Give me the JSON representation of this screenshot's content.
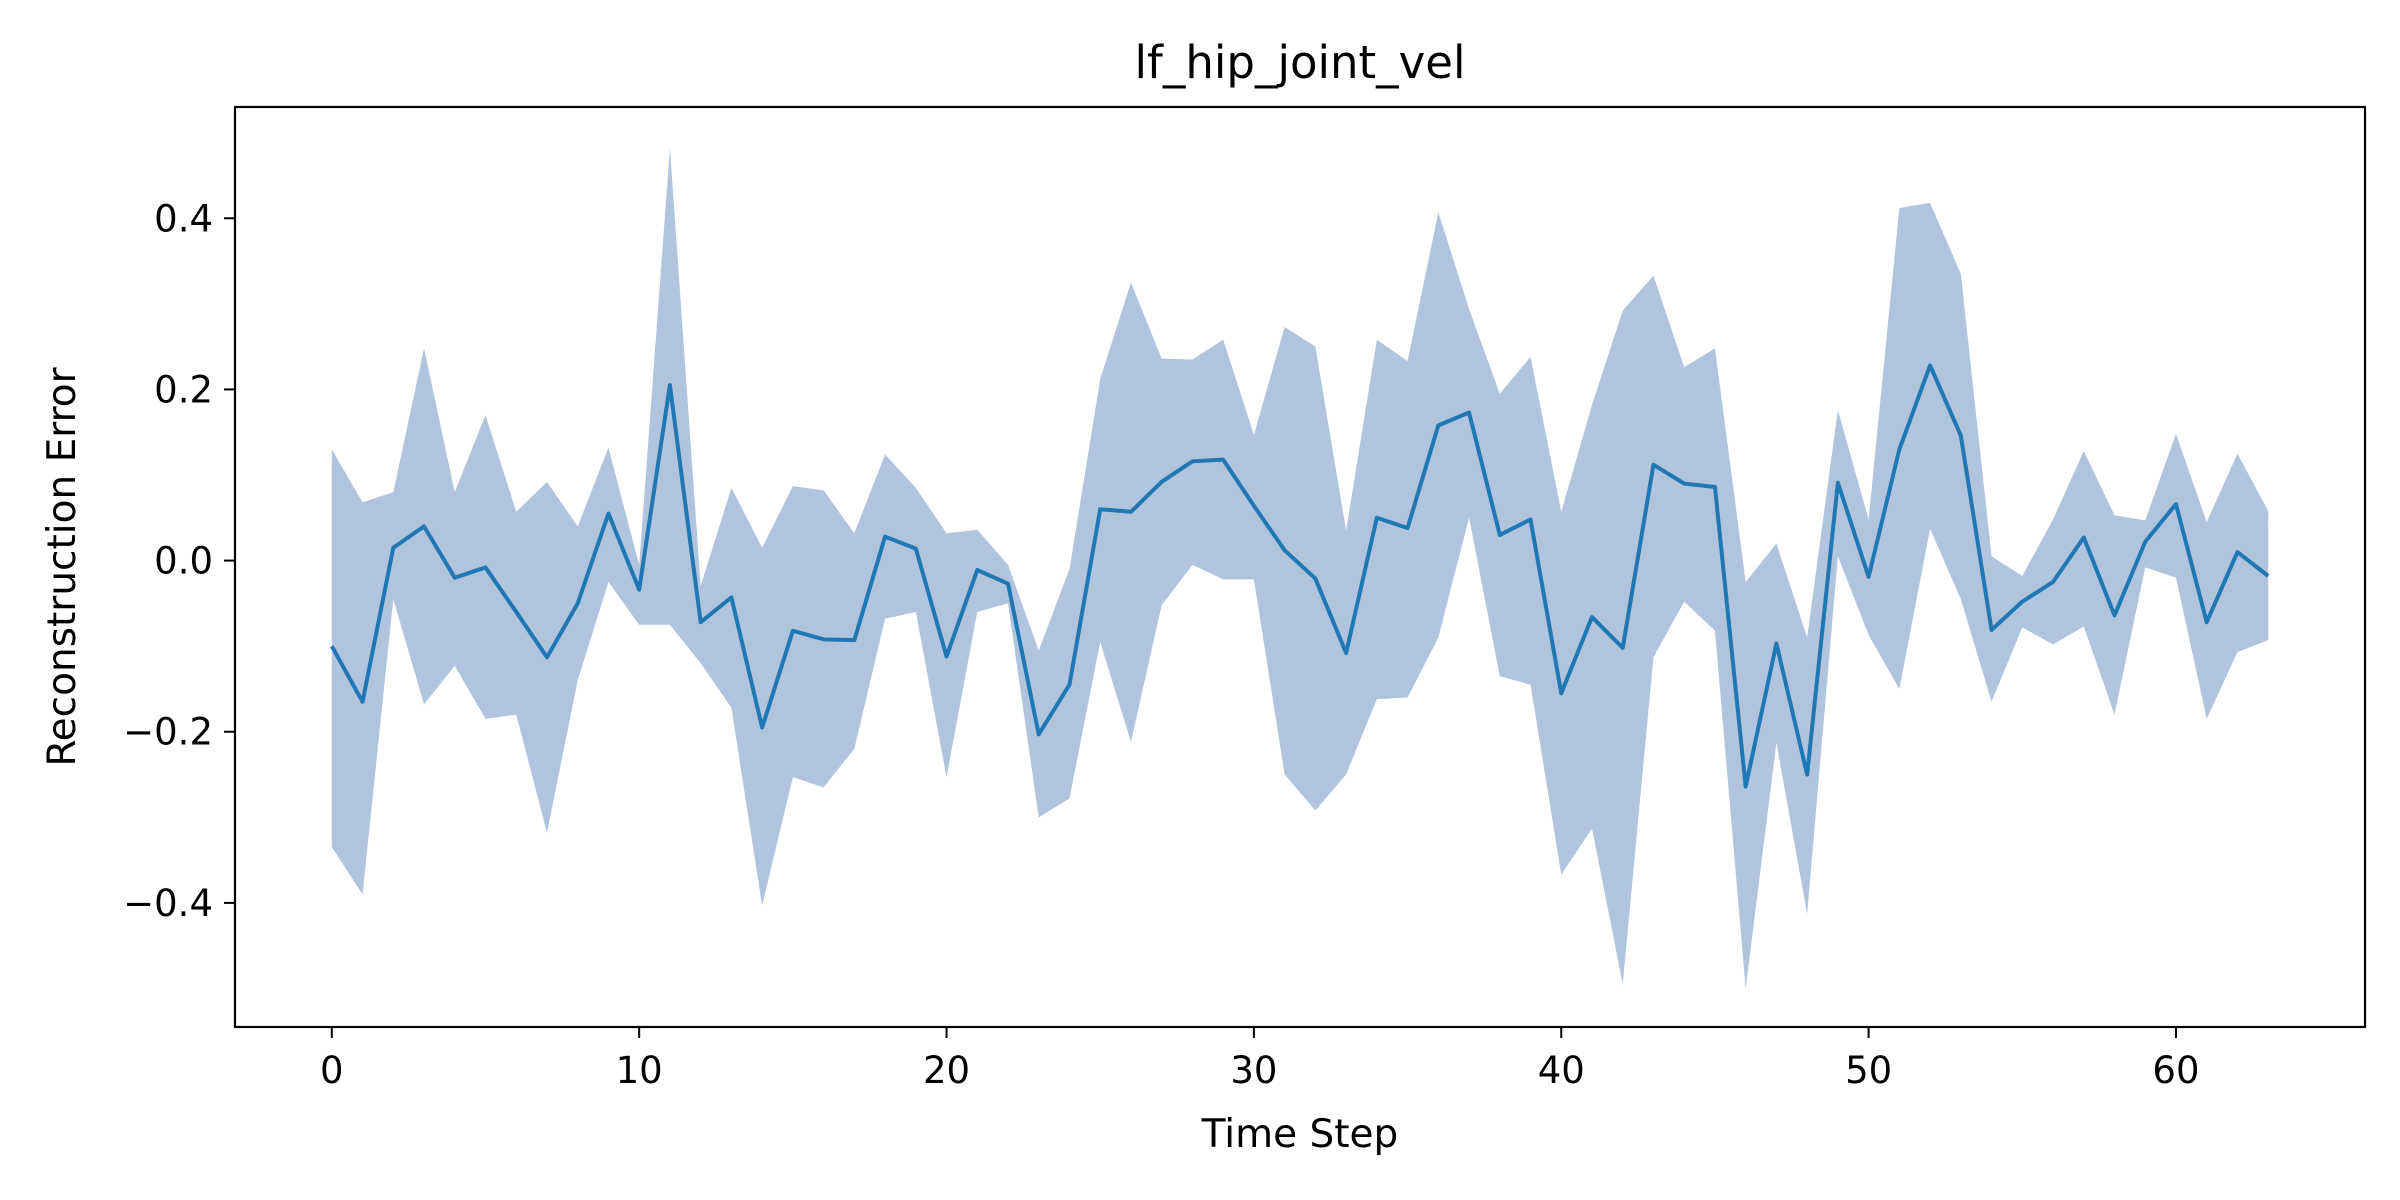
{
  "chart_data": {
    "type": "line",
    "title": "lf_hip_joint_vel",
    "xlabel": "Time Step",
    "ylabel": "Reconstruction Error",
    "xlim": [
      -3.15,
      66.15
    ],
    "ylim": [
      -0.545,
      0.53
    ],
    "xticks": [
      0,
      10,
      20,
      30,
      40,
      50,
      60
    ],
    "xtick_labels": [
      "0",
      "10",
      "20",
      "30",
      "40",
      "50",
      "60"
    ],
    "yticks": [
      -0.4,
      -0.2,
      0.0,
      0.2,
      0.4
    ],
    "ytick_labels": [
      "−0.4",
      "−0.2",
      "0.0",
      "0.2",
      "0.4"
    ],
    "grid": false,
    "colors": {
      "line": "#1f77b4",
      "band": "#b0c4de",
      "axes": "#000000"
    },
    "series": [
      {
        "x": [
          0,
          1,
          2,
          3,
          4,
          5,
          6,
          7,
          8,
          9,
          10,
          11,
          12,
          13,
          14,
          15,
          16,
          17,
          18,
          19,
          20,
          21,
          22,
          23,
          24,
          25,
          26,
          27,
          28,
          29,
          30,
          31,
          32,
          33,
          34,
          35,
          36,
          37,
          38,
          39,
          40,
          41,
          42,
          43,
          44,
          45,
          46,
          47,
          48,
          49,
          50,
          51,
          52,
          53,
          54,
          55,
          56,
          57,
          58,
          59,
          60,
          61,
          62,
          63
        ],
        "values": [
          -0.1,
          -0.165,
          0.015,
          0.04,
          -0.02,
          -0.008,
          -0.06,
          -0.113,
          -0.05,
          0.055,
          -0.034,
          0.205,
          -0.072,
          -0.043,
          -0.195,
          -0.082,
          -0.092,
          -0.093,
          0.028,
          0.014,
          -0.112,
          -0.011,
          -0.027,
          -0.203,
          -0.145,
          0.06,
          0.057,
          0.092,
          0.116,
          0.118,
          0.064,
          0.012,
          -0.021,
          -0.108,
          0.05,
          0.038,
          0.158,
          0.173,
          0.03,
          0.048,
          -0.155,
          -0.066,
          -0.102,
          0.112,
          0.09,
          0.086,
          -0.264,
          -0.097,
          -0.25,
          0.091,
          -0.019,
          0.13,
          0.228,
          0.146,
          -0.081,
          -0.048,
          -0.025,
          0.027,
          -0.064,
          0.022,
          0.066,
          -0.072,
          0.01,
          -0.018
        ],
        "lower": [
          -0.335,
          -0.39,
          -0.045,
          -0.168,
          -0.123,
          -0.185,
          -0.18,
          -0.318,
          -0.14,
          -0.025,
          -0.075,
          -0.075,
          -0.12,
          -0.172,
          -0.403,
          -0.253,
          -0.265,
          -0.22,
          -0.068,
          -0.06,
          -0.253,
          -0.06,
          -0.05,
          -0.3,
          -0.278,
          -0.095,
          -0.212,
          -0.052,
          -0.005,
          -0.022,
          -0.022,
          -0.25,
          -0.292,
          -0.25,
          -0.162,
          -0.16,
          -0.09,
          0.05,
          -0.135,
          -0.145,
          -0.367,
          -0.313,
          -0.495,
          -0.113,
          -0.048,
          -0.082,
          -0.5,
          -0.213,
          -0.413,
          0.005,
          -0.087,
          -0.15,
          0.037,
          -0.045,
          -0.165,
          -0.078,
          -0.098,
          -0.077,
          -0.18,
          -0.008,
          -0.02,
          -0.185,
          -0.107,
          -0.093
        ],
        "upper": [
          0.13,
          0.068,
          0.08,
          0.248,
          0.08,
          0.17,
          0.057,
          0.092,
          0.04,
          0.132,
          -0.005,
          0.482,
          -0.03,
          0.085,
          0.015,
          0.087,
          0.082,
          0.032,
          0.124,
          0.085,
          0.032,
          0.036,
          -0.005,
          -0.105,
          -0.01,
          0.212,
          0.325,
          0.236,
          0.235,
          0.258,
          0.147,
          0.273,
          0.25,
          0.035,
          0.258,
          0.233,
          0.407,
          0.294,
          0.195,
          0.238,
          0.057,
          0.182,
          0.292,
          0.333,
          0.226,
          0.248,
          -0.025,
          0.02,
          -0.09,
          0.176,
          0.048,
          0.412,
          0.418,
          0.335,
          0.005,
          -0.018,
          0.048,
          0.128,
          0.053,
          0.047,
          0.148,
          0.045,
          0.125,
          0.058
        ]
      }
    ]
  }
}
